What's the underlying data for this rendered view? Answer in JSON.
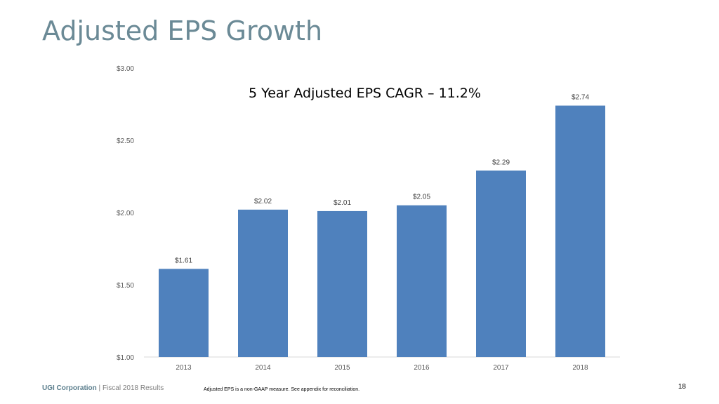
{
  "slide": {
    "title": "Adjusted EPS Growth",
    "footer_company": "UGI Corporation",
    "footer_separator": " | ",
    "footer_period": "Fiscal 2018 Results",
    "footer_note": "Adjusted EPS is a non-GAAP measure. See appendix for reconciliation.",
    "page_number": "18"
  },
  "chart_data": {
    "type": "bar",
    "title": "5 Year Adjusted EPS CAGR – 11.2%",
    "categories": [
      "2013",
      "2014",
      "2015",
      "2016",
      "2017",
      "2018"
    ],
    "values": [
      1.61,
      2.02,
      2.01,
      2.05,
      2.29,
      2.74
    ],
    "data_labels": [
      "$1.61",
      "$2.02",
      "$2.01",
      "$2.05",
      "$2.29",
      "$2.74"
    ],
    "ylim": [
      1.0,
      3.0
    ],
    "yticks": [
      1.0,
      1.5,
      2.0,
      2.5,
      3.0
    ],
    "ytick_labels": [
      "$1.00",
      "$1.50",
      "$2.00",
      "$2.50",
      "$3.00"
    ],
    "xlabel": "",
    "ylabel": "",
    "grid": false,
    "bar_color": "#4f81bd"
  }
}
